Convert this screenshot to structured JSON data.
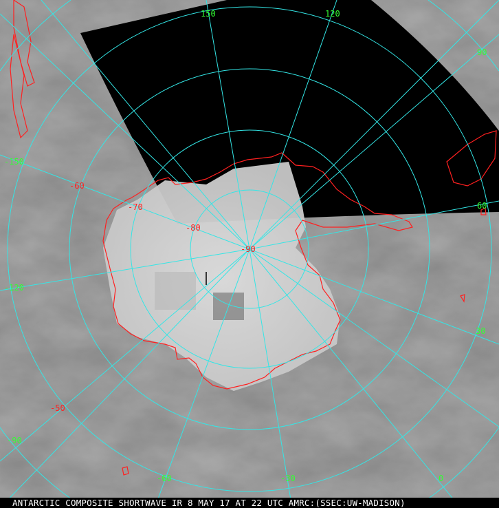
{
  "image": {
    "caption": "ANTARCTIC COMPOSITE SHORTWAVE IR 8 MAY 17 AT 22 UTC AMRC:(SSEC:UW-MADISON)",
    "colors": {
      "graticule": "#33e6e6",
      "coastline": "#ff2020",
      "longitude_labels": "#33ff33",
      "latitude_labels": "#ff2020",
      "no_data": "#000000"
    },
    "longitude_labels": [
      "150",
      "120",
      "90",
      "60",
      "30",
      "0",
      "-30",
      "-60",
      "-90",
      "-120",
      "-150"
    ],
    "latitude_labels": [
      "-90",
      "-80",
      "-70",
      "-60",
      "-50"
    ]
  }
}
